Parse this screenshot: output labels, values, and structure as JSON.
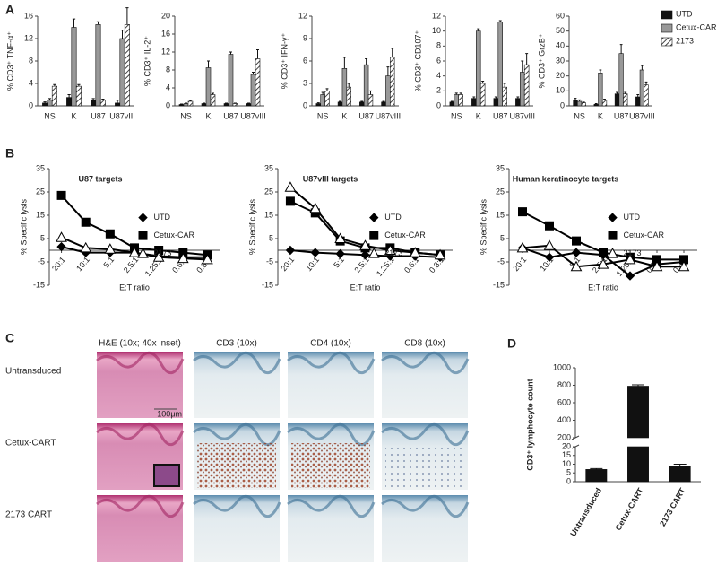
{
  "panel_labels": [
    "A",
    "B",
    "C",
    "D"
  ],
  "shared_legend": [
    {
      "name": "UTD",
      "color": "#111111"
    },
    {
      "name": "Cetux-CAR",
      "color": "#999999"
    },
    {
      "name": "2173",
      "color": "#000000",
      "pattern": "hatch"
    }
  ],
  "histology": {
    "columns": [
      "H&E (10x; 40x inset)",
      "CD3 (10x)",
      "CD4 (10x)",
      "CD8 (10x)"
    ],
    "rows": [
      "Untransduced",
      "Cetux-CART",
      "2173 CART"
    ],
    "scale_bar": "100μm"
  },
  "chart_data": [
    {
      "type": "bar",
      "ylabel": "% CD3⁺ TNF-α⁺",
      "categories": [
        "NS",
        "K",
        "U87",
        "U87vIII"
      ],
      "ylim": [
        0,
        16
      ],
      "yticks": [
        0,
        4,
        8,
        12,
        16
      ],
      "series": [
        {
          "color": "#111111",
          "values": [
            0.5,
            1.5,
            1,
            0.5
          ],
          "errors": [
            0.2,
            0.5,
            0.3,
            0.5
          ]
        },
        {
          "color": "#999999",
          "values": [
            1,
            14,
            14.5,
            12
          ],
          "errors": [
            0.3,
            1.5,
            0.5,
            1.5
          ]
        },
        {
          "color": "#000000",
          "pattern": "hatch",
          "values": [
            3.5,
            3.5,
            1,
            14.5
          ],
          "errors": [
            0.3,
            0.3,
            0.2,
            3
          ]
        }
      ]
    },
    {
      "type": "bar",
      "ylabel": "% CD3⁺ IL-2⁺",
      "categories": [
        "NS",
        "K",
        "U87",
        "U87vIII"
      ],
      "ylim": [
        0,
        20
      ],
      "yticks": [
        0,
        4,
        8,
        12,
        16,
        20
      ],
      "series": [
        {
          "color": "#111111",
          "values": [
            0.3,
            0.5,
            0.5,
            0.5
          ],
          "errors": [
            0.1,
            0.1,
            0.1,
            0.1
          ]
        },
        {
          "color": "#999999",
          "values": [
            0.5,
            8.5,
            11.5,
            7
          ],
          "errors": [
            0.1,
            1.5,
            0.5,
            0.5
          ]
        },
        {
          "color": "#000000",
          "pattern": "hatch",
          "values": [
            1,
            2.5,
            0.5,
            10.5
          ],
          "errors": [
            0.2,
            0.3,
            0.1,
            2
          ]
        }
      ]
    },
    {
      "type": "bar",
      "ylabel": "% CD3⁺ IFN-γ⁺",
      "categories": [
        "NS",
        "K",
        "U87",
        "U87vIII"
      ],
      "ylim": [
        0,
        12
      ],
      "yticks": [
        0,
        3,
        6,
        9,
        12
      ],
      "series": [
        {
          "color": "#111111",
          "values": [
            0.3,
            0.5,
            0.5,
            0.5
          ],
          "errors": [
            0.1,
            0.1,
            0.1,
            0.1
          ]
        },
        {
          "color": "#999999",
          "values": [
            1.5,
            5,
            5.5,
            4
          ],
          "errors": [
            0.3,
            1.5,
            0.8,
            1.2
          ]
        },
        {
          "color": "#000000",
          "pattern": "hatch",
          "values": [
            2,
            2.5,
            1.5,
            6.5
          ],
          "errors": [
            0.3,
            0.5,
            0.5,
            1.2
          ]
        }
      ]
    },
    {
      "type": "bar",
      "ylabel": "% CD3⁺ CD107⁺",
      "categories": [
        "NS",
        "K",
        "U87",
        "U87vIII"
      ],
      "ylim": [
        0,
        12
      ],
      "yticks": [
        0,
        2,
        4,
        6,
        8,
        10,
        12
      ],
      "series": [
        {
          "color": "#111111",
          "values": [
            0.5,
            1,
            1,
            1
          ],
          "errors": [
            0.1,
            0.2,
            0.2,
            0.2
          ]
        },
        {
          "color": "#999999",
          "values": [
            1.5,
            10,
            11.2,
            4.5
          ],
          "errors": [
            0.2,
            0.3,
            0.2,
            1.5
          ]
        },
        {
          "color": "#000000",
          "pattern": "hatch",
          "values": [
            1.5,
            3,
            2.5,
            5.5
          ],
          "errors": [
            0.2,
            0.3,
            0.5,
            1.5
          ]
        }
      ]
    },
    {
      "type": "bar",
      "ylabel": "% CD3⁺ GrzB⁺",
      "categories": [
        "NS",
        "K",
        "U87",
        "U87vIII"
      ],
      "ylim": [
        0,
        60
      ],
      "yticks": [
        0,
        10,
        20,
        30,
        40,
        50,
        60
      ],
      "series": [
        {
          "color": "#111111",
          "values": [
            4,
            1,
            8,
            6
          ],
          "errors": [
            1,
            0.5,
            1,
            1.5
          ]
        },
        {
          "color": "#999999",
          "values": [
            3,
            22,
            35,
            24
          ],
          "errors": [
            1,
            2,
            6,
            3
          ]
        },
        {
          "color": "#000000",
          "pattern": "hatch",
          "values": [
            2,
            4,
            8,
            14
          ],
          "errors": [
            0.5,
            0.5,
            1,
            2
          ]
        }
      ]
    },
    {
      "type": "line",
      "title": "U87 targets",
      "ylabel": "% Specific lysis",
      "xlabel": "E:T ratio",
      "categories": [
        "20:1",
        "10:1",
        "5:1",
        "2.5:1",
        "1.25:1",
        "0.6:1",
        "0.3:1"
      ],
      "ylim": [
        -15,
        35
      ],
      "yticks": [
        -15,
        -5,
        5,
        15,
        25,
        35
      ],
      "legend": "right",
      "series": [
        {
          "name": "UTD",
          "color": "#000000",
          "marker": "diamond",
          "values": [
            1.5,
            -1,
            -1,
            -1,
            -2.5,
            -3,
            -3
          ]
        },
        {
          "name": "Cetux-CAR",
          "color": "#000000",
          "marker": "square",
          "values": [
            23.5,
            12,
            7,
            1,
            0,
            -1,
            -2
          ]
        },
        {
          "name": "2173",
          "color": "#000000",
          "marker": "triangle-open",
          "values": [
            5.5,
            1,
            0.5,
            -1,
            -3,
            -3.5,
            -4
          ]
        }
      ]
    },
    {
      "type": "line",
      "title": "U87vIII targets",
      "ylabel": "% Specific lysis",
      "xlabel": "E:T ratio",
      "categories": [
        "20:1",
        "10:1",
        "5:1",
        "2.5:1",
        "1.25:1",
        "0.6:1",
        "0.3:1"
      ],
      "ylim": [
        -15,
        35
      ],
      "yticks": [
        -15,
        -5,
        5,
        15,
        25,
        35
      ],
      "legend": "right",
      "series": [
        {
          "name": "UTD",
          "color": "#000000",
          "marker": "diamond",
          "values": [
            0,
            -1,
            -1.5,
            -2,
            -2.5,
            -2.5,
            -3
          ]
        },
        {
          "name": "Cetux-CAR",
          "color": "#000000",
          "marker": "square",
          "values": [
            21,
            16,
            4,
            1,
            1,
            -1,
            -2
          ]
        },
        {
          "name": "2173",
          "color": "#000000",
          "marker": "triangle-open",
          "values": [
            27,
            18,
            5,
            2,
            0,
            -1,
            -2
          ]
        }
      ]
    },
    {
      "type": "line",
      "title": "Human keratinocyte targets",
      "ylabel": "% Specific lysis",
      "xlabel": "E:T ratio",
      "categories": [
        "20:1",
        "10:1",
        "5:1",
        "2.5:1",
        "1.25:1",
        "0.6:1",
        "0.3:1"
      ],
      "ylim": [
        -15,
        35
      ],
      "yticks": [
        -15,
        -5,
        5,
        15,
        25,
        35
      ],
      "legend": "right",
      "series": [
        {
          "name": "UTD",
          "color": "#000000",
          "marker": "diamond",
          "values": [
            1,
            -3,
            -1,
            -2,
            -11,
            -6,
            -5
          ]
        },
        {
          "name": "Cetux-CAR",
          "color": "#000000",
          "marker": "square",
          "values": [
            16.5,
            10.5,
            4,
            -1,
            -3,
            -4,
            -4
          ]
        },
        {
          "name": "2173",
          "color": "#000000",
          "marker": "triangle-open",
          "values": [
            1,
            2,
            -7,
            -6,
            -4,
            -7,
            -7
          ]
        }
      ]
    },
    {
      "type": "bar",
      "ylabel": "CD3⁺ lymphocyte count",
      "categories": [
        "Untransduced",
        "Cetux-CART",
        "2173 CART"
      ],
      "values": [
        7,
        790,
        9
      ],
      "errors": [
        0.5,
        15,
        1
      ],
      "color": "#111111",
      "ylim": [
        0,
        1000
      ],
      "ybreak": [
        20,
        200
      ],
      "yticks": [
        0,
        5,
        10,
        15,
        20,
        200,
        400,
        600,
        800,
        1000
      ]
    }
  ]
}
